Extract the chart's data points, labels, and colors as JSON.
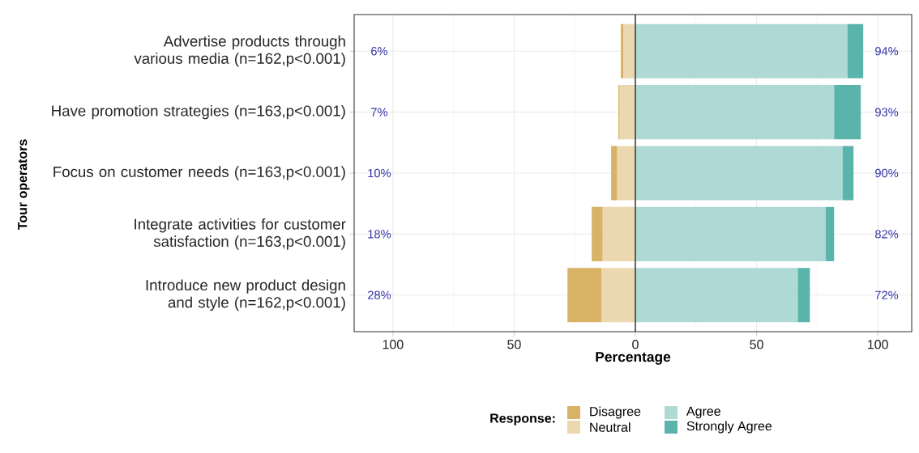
{
  "chart_data": {
    "type": "bar",
    "orientation": "horizontal",
    "stacked": true,
    "xlabel": "Percentage",
    "ylabel": "Tour operators",
    "legend_title": "Response:",
    "categories": [
      "Advertise products through various media (n=162,p<0.001)",
      "Have promotion strategies (n=163,p<0.001)",
      "Focus on customer needs (n=163,p<0.001)",
      "Integrate activities for customer satisfaction (n=163,p<0.001)",
      "Introduce new product design and style (n=162,p<0.001)"
    ],
    "series": [
      {
        "name": "Neutral",
        "color": "#ebd8b0",
        "values": [
          -5,
          -6.5,
          -7.5,
          -13.5,
          -14
        ]
      },
      {
        "name": "Disagree",
        "color": "#d8b365",
        "values": [
          -1,
          -0.5,
          -2.5,
          -4.5,
          -14
        ]
      },
      {
        "name": "Agree",
        "color": "#aed9d5",
        "values": [
          87.5,
          82,
          85.5,
          78.5,
          67
        ]
      },
      {
        "name": "Strongly Agree",
        "color": "#5ab4ac",
        "values": [
          6.5,
          11,
          4.5,
          3.5,
          5
        ]
      }
    ],
    "xlim": [
      -116,
      114
    ],
    "xticks": [
      {
        "value": -100,
        "label": "100"
      },
      {
        "value": -50,
        "label": "50"
      },
      0,
      50,
      100
    ],
    "grid": true,
    "legend": "bottom",
    "ref_lines": [
      {
        "axis": "x",
        "value": 0,
        "color": "#333333"
      }
    ],
    "annotations": [
      "6%",
      "7%",
      "10%",
      "18%",
      "28%",
      "94%",
      "93%",
      "90%",
      "82%",
      "72%"
    ]
  }
}
